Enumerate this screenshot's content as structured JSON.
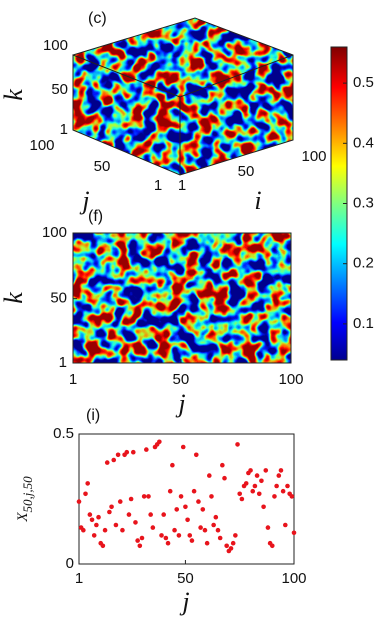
{
  "chart_data": [
    {
      "type": "cube",
      "title": "(c)",
      "klabel": "k",
      "jlabel": "j",
      "ilabel": "i",
      "kticks": [
        1,
        50,
        100
      ],
      "jticks": [
        1,
        50,
        100
      ],
      "iticks": [
        1,
        50,
        100
      ]
    },
    {
      "type": "heatmap",
      "title": "(f)",
      "xlabel": "j",
      "ylabel": "k",
      "xlim": [
        1,
        100
      ],
      "xticks": [
        1,
        50,
        100
      ],
      "ylim": [
        1,
        100
      ],
      "yticks": [
        1,
        50,
        100
      ],
      "colorbar": {
        "clim": [
          0.04,
          0.56
        ],
        "ticks": [
          0.1,
          0.2,
          0.3,
          0.4,
          0.5
        ]
      }
    },
    {
      "type": "scatter",
      "title": "(i)",
      "xlabel": "j",
      "ylabel": "X",
      "ylabel_subscript": "50,j,50",
      "color": "#e8141c",
      "xlim": [
        1,
        100
      ],
      "xticks": [
        1,
        50,
        100
      ],
      "ylim": [
        0,
        0.5
      ],
      "yticks": [
        0,
        0.5
      ],
      "x": [
        1,
        2,
        3,
        4,
        5,
        6,
        7,
        8,
        9,
        10,
        11,
        12,
        13,
        14,
        15,
        16,
        17,
        18,
        19,
        20,
        21,
        22,
        23,
        24,
        25,
        26,
        27,
        28,
        29,
        30,
        31,
        32,
        33,
        34,
        35,
        36,
        37,
        38,
        39,
        40,
        41,
        42,
        43,
        44,
        45,
        46,
        47,
        48,
        49,
        50,
        51,
        52,
        53,
        54,
        55,
        56,
        57,
        58,
        59,
        60,
        61,
        62,
        63,
        64,
        65,
        66,
        67,
        68,
        69,
        70,
        71,
        72,
        73,
        74,
        75,
        76,
        77,
        78,
        79,
        80,
        81,
        82,
        83,
        84,
        85,
        86,
        87,
        88,
        89,
        90,
        91,
        92,
        93,
        94,
        95,
        96,
        97,
        98,
        99,
        100
      ],
      "y": [
        0.24,
        0.14,
        0.13,
        0.27,
        0.31,
        0.19,
        0.17,
        0.11,
        0.15,
        0.18,
        0.08,
        0.07,
        0.13,
        0.39,
        0.2,
        0.22,
        0.4,
        0.15,
        0.42,
        0.24,
        0.13,
        0.42,
        0.43,
        0.19,
        0.25,
        0.43,
        0.16,
        0.09,
        0.07,
        0.1,
        0.26,
        0.44,
        0.26,
        0.19,
        0.14,
        0.45,
        0.46,
        0.47,
        0.11,
        0.19,
        0.1,
        0.08,
        0.28,
        0.38,
        0.13,
        0.21,
        0.11,
        0.26,
        0.45,
        0.22,
        0.17,
        0.11,
        0.09,
        0.28,
        0.42,
        0.24,
        0.14,
        0.21,
        0.13,
        0.08,
        0.34,
        0.26,
        0.15,
        0.18,
        0.13,
        0.1,
        0.38,
        0.33,
        0.07,
        0.05,
        0.06,
        0.08,
        0.11,
        0.46,
        0.27,
        0.25,
        0.3,
        0.31,
        0.35,
        0.36,
        0.28,
        0.3,
        0.34,
        0.27,
        0.32,
        0.22,
        0.36,
        0.14,
        0.08,
        0.07,
        0.26,
        0.3,
        0.34,
        0.36,
        0.28,
        0.15,
        0.3,
        0.27,
        0.26,
        0.12
      ]
    }
  ]
}
